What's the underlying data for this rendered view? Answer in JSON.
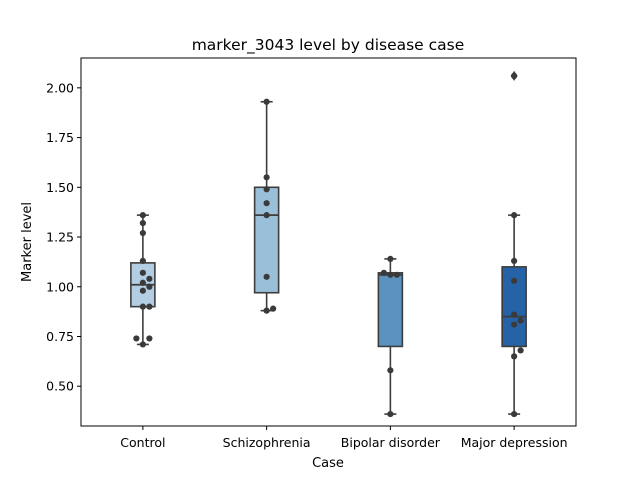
{
  "chart_data": {
    "type": "box",
    "title": "marker_3043 level by disease case",
    "xlabel": "Case",
    "ylabel": "Marker level",
    "ylim": [
      0.3,
      2.15
    ],
    "yticks": [
      "0.50",
      "0.75",
      "1.00",
      "1.25",
      "1.50",
      "1.75",
      "2.00"
    ],
    "ytick_values": [
      0.5,
      0.75,
      1.0,
      1.25,
      1.5,
      1.75,
      2.0
    ],
    "grid": false,
    "categories": [
      "Control",
      "Schizophrenia",
      "Bipolar disorder",
      "Major depression"
    ],
    "colors": [
      "#b3cde3",
      "#9ac0d9",
      "#5b93c0",
      "#2563a6"
    ],
    "boxes": [
      {
        "category": "Control",
        "whisker_low": 0.71,
        "q1": 0.9,
        "median": 1.01,
        "q3": 1.12,
        "whisker_high": 1.36,
        "outliers": []
      },
      {
        "category": "Schizophrenia",
        "whisker_low": 0.88,
        "q1": 0.97,
        "median": 1.36,
        "q3": 1.5,
        "whisker_high": 1.93,
        "outliers": []
      },
      {
        "category": "Bipolar disorder",
        "whisker_low": 0.36,
        "q1": 0.7,
        "median": 1.06,
        "q3": 1.07,
        "whisker_high": 1.14,
        "outliers": []
      },
      {
        "category": "Major depression",
        "whisker_low": 0.36,
        "q1": 0.7,
        "median": 0.85,
        "q3": 1.1,
        "whisker_high": 1.36,
        "outliers": [
          2.06
        ]
      }
    ],
    "points": [
      [
        1.36,
        1.32,
        1.27,
        1.13,
        1.07,
        1.04,
        1.02,
        1.0,
        0.98,
        0.9,
        0.9,
        0.74,
        0.74,
        0.71
      ],
      [
        1.93,
        1.55,
        1.49,
        1.42,
        1.36,
        1.05,
        0.89,
        0.88
      ],
      [
        1.14,
        1.07,
        1.06,
        1.06,
        0.58,
        0.36
      ],
      [
        2.06,
        1.36,
        1.13,
        1.03,
        0.86,
        0.83,
        0.81,
        0.68,
        0.65,
        0.36
      ]
    ]
  }
}
